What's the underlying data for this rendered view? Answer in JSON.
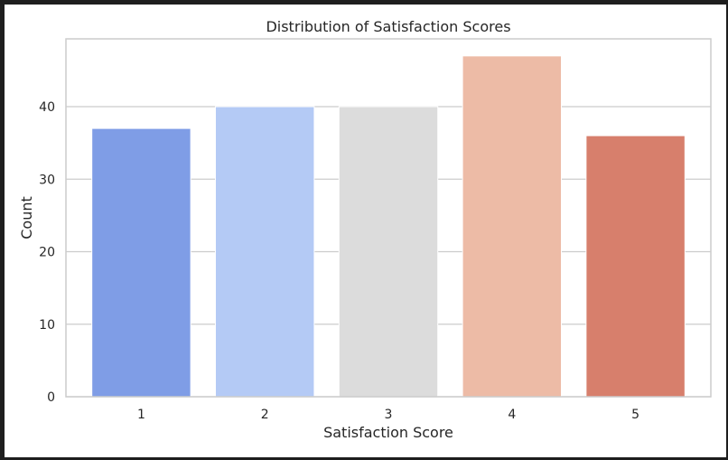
{
  "chart_data": {
    "type": "bar",
    "title": "Distribution of Satisfaction Scores",
    "xlabel": "Satisfaction Score",
    "ylabel": "Count",
    "categories": [
      "1",
      "2",
      "3",
      "4",
      "5"
    ],
    "values": [
      37,
      40,
      40,
      47,
      36
    ],
    "colors": [
      "#7f9de6",
      "#b4caf5",
      "#dcdcdc",
      "#edbba6",
      "#d77f6c"
    ],
    "ylim": [
      0,
      49.35
    ],
    "yticks": [
      0,
      10,
      20,
      30,
      40
    ],
    "grid": true,
    "legend": "none"
  }
}
